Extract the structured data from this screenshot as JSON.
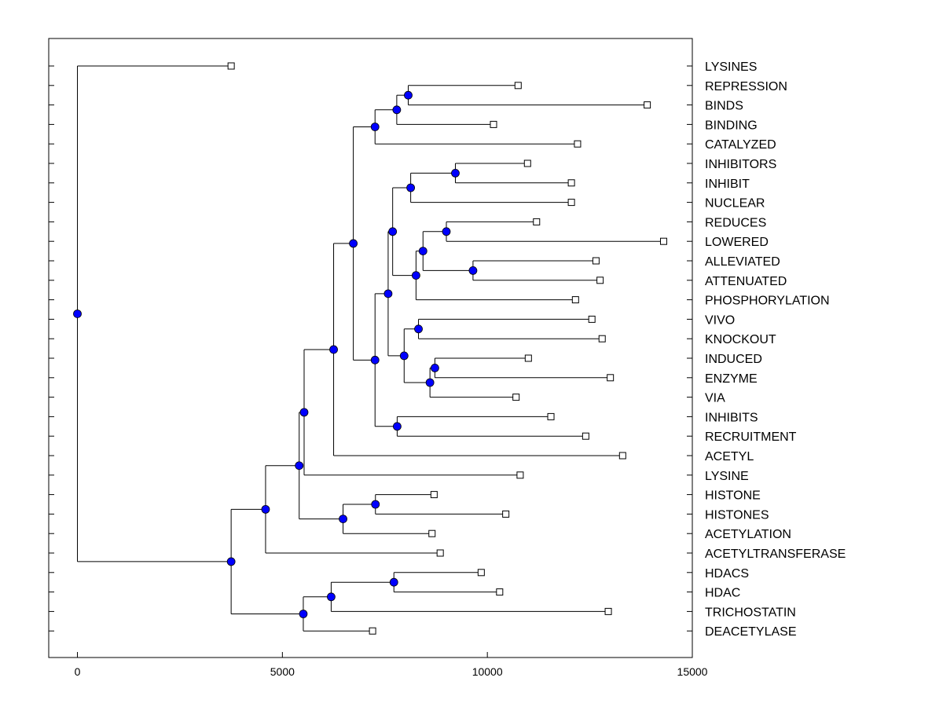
{
  "chart_data": {
    "type": "dendrogram",
    "title": "",
    "xlabel": "",
    "ylabel": "",
    "xlim": [
      -700,
      15000
    ],
    "xticks": [
      0,
      5000,
      10000,
      15000
    ],
    "tick_labels": [
      "0",
      "5000",
      "10000",
      "15000"
    ],
    "colors": {
      "node_fill": "#0000ff",
      "line": "#000000",
      "leaf_fill": "#ffffff"
    },
    "leaves": [
      {
        "label": "LYSINES",
        "x": 3750
      },
      {
        "label": "REPRESSION",
        "x": 10750
      },
      {
        "label": "BINDS",
        "x": 13900
      },
      {
        "label": "BINDING",
        "x": 10150
      },
      {
        "label": "CATALYZED",
        "x": 12200
      },
      {
        "label": "INHIBITORS",
        "x": 10980
      },
      {
        "label": "INHIBIT",
        "x": 12050
      },
      {
        "label": "NUCLEAR",
        "x": 12050
      },
      {
        "label": "REDUCES",
        "x": 11200
      },
      {
        "label": "LOWERED",
        "x": 14300
      },
      {
        "label": "ALLEVIATED",
        "x": 12650
      },
      {
        "label": "ATTENUATED",
        "x": 12750
      },
      {
        "label": "PHOSPHORYLATION",
        "x": 12150
      },
      {
        "label": "VIVO",
        "x": 12550
      },
      {
        "label": "KNOCKOUT",
        "x": 12800
      },
      {
        "label": "INDUCED",
        "x": 11000
      },
      {
        "label": "ENZYME",
        "x": 13000
      },
      {
        "label": "VIA",
        "x": 10700
      },
      {
        "label": "INHIBITS",
        "x": 11550
      },
      {
        "label": "RECRUITMENT",
        "x": 12400
      },
      {
        "label": "ACETYL",
        "x": 13300
      },
      {
        "label": "LYSINE",
        "x": 10800
      },
      {
        "label": "HISTONE",
        "x": 8700
      },
      {
        "label": "HISTONES",
        "x": 10450
      },
      {
        "label": "ACETYLATION",
        "x": 8650
      },
      {
        "label": "ACETYLTRANSFERASE",
        "x": 8850
      },
      {
        "label": "HDACS",
        "x": 9850
      },
      {
        "label": "HDAC",
        "x": 10300
      },
      {
        "label": "TRICHOSTATIN",
        "x": 12950
      },
      {
        "label": "DEACETYLASE",
        "x": 7200
      }
    ],
    "merges": [
      {
        "id": "n1",
        "x": 8070,
        "children": [
          "REPRESSION",
          "BINDS"
        ]
      },
      {
        "id": "n2",
        "x": 7790,
        "children": [
          "n1",
          "BINDING"
        ]
      },
      {
        "id": "n3",
        "x": 7260,
        "children": [
          "n2",
          "CATALYZED"
        ]
      },
      {
        "id": "n4",
        "x": 9220,
        "children": [
          "INHIBITORS",
          "INHIBIT"
        ]
      },
      {
        "id": "n5",
        "x": 8130,
        "children": [
          "n4",
          "NUCLEAR"
        ]
      },
      {
        "id": "n6",
        "x": 9000,
        "children": [
          "REDUCES",
          "LOWERED"
        ]
      },
      {
        "id": "n7",
        "x": 9650,
        "children": [
          "ALLEVIATED",
          "ATTENUATED"
        ]
      },
      {
        "id": "n8",
        "x": 8430,
        "children": [
          "n6",
          "n7"
        ]
      },
      {
        "id": "n9",
        "x": 8260,
        "children": [
          "n8",
          "PHOSPHORYLATION"
        ]
      },
      {
        "id": "n10",
        "x": 7690,
        "children": [
          "n5",
          "n9"
        ]
      },
      {
        "id": "n11",
        "x": 8320,
        "children": [
          "VIVO",
          "KNOCKOUT"
        ]
      },
      {
        "id": "n12",
        "x": 8720,
        "children": [
          "INDUCED",
          "ENZYME"
        ]
      },
      {
        "id": "n13",
        "x": 8600,
        "children": [
          "n12",
          "VIA"
        ]
      },
      {
        "id": "n14",
        "x": 7970,
        "children": [
          "n11",
          "n13"
        ]
      },
      {
        "id": "n15",
        "x": 7580,
        "children": [
          "n10",
          "n14"
        ]
      },
      {
        "id": "n16",
        "x": 7800,
        "children": [
          "INHIBITS",
          "RECRUITMENT"
        ]
      },
      {
        "id": "n17",
        "x": 7260,
        "children": [
          "n15",
          "n16"
        ]
      },
      {
        "id": "n18",
        "x": 6730,
        "children": [
          "n3",
          "n17"
        ]
      },
      {
        "id": "n19",
        "x": 6250,
        "children": [
          "n18",
          "ACETYL"
        ]
      },
      {
        "id": "n20",
        "x": 5530,
        "children": [
          "n19",
          "LYSINE"
        ]
      },
      {
        "id": "n21",
        "x": 7270,
        "children": [
          "HISTONE",
          "HISTONES"
        ]
      },
      {
        "id": "n22",
        "x": 6480,
        "children": [
          "n21",
          "ACETYLATION"
        ]
      },
      {
        "id": "n23",
        "x": 5410,
        "children": [
          "n20",
          "n22"
        ]
      },
      {
        "id": "n24",
        "x": 4590,
        "children": [
          "n23",
          "ACETYLTRANSFERASE"
        ]
      },
      {
        "id": "n25",
        "x": 7720,
        "children": [
          "HDACS",
          "HDAC"
        ]
      },
      {
        "id": "n26",
        "x": 6190,
        "children": [
          "n25",
          "TRICHOSTATIN"
        ]
      },
      {
        "id": "n27",
        "x": 5510,
        "children": [
          "n26",
          "DEACETYLASE"
        ]
      },
      {
        "id": "n28",
        "x": 3750,
        "children": [
          "n24",
          "n27"
        ]
      },
      {
        "id": "n29",
        "x": 0,
        "children": [
          "LYSINES",
          "n28"
        ]
      }
    ]
  }
}
